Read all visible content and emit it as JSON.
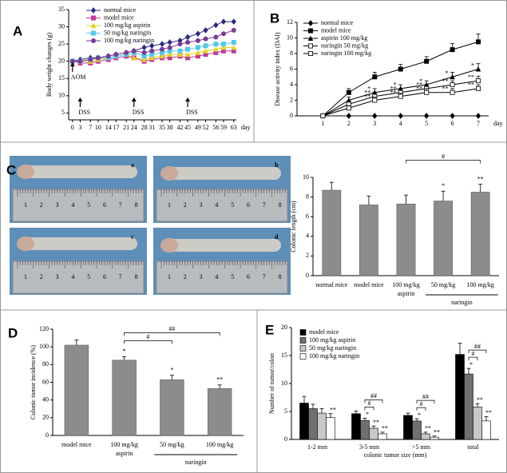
{
  "chart_data": [
    {
      "panel": "A",
      "type": "line",
      "ylabel": "Body weight changes (g)",
      "xlabel": "day",
      "x": [
        0,
        3,
        7,
        10,
        14,
        17,
        21,
        24,
        28,
        31,
        35,
        38,
        42,
        45,
        49,
        52,
        56,
        59,
        63
      ],
      "xlim": [
        -1.5,
        64
      ],
      "xticks": [
        0,
        3,
        7,
        10,
        14,
        17,
        21,
        24,
        28,
        31,
        35,
        38,
        42,
        45,
        49,
        52,
        56,
        59,
        63
      ],
      "ylim": [
        3,
        35
      ],
      "yticks": [
        5,
        10,
        15,
        20,
        25,
        30,
        35
      ],
      "series": [
        {
          "name": "normal mice",
          "color": "#2b2b80",
          "marker": "diamond",
          "values": [
            20,
            20.5,
            21,
            21,
            21.5,
            22,
            22.5,
            23,
            24,
            24.5,
            25,
            25.5,
            26,
            27,
            28,
            29,
            30.5,
            31.5,
            31.5
          ]
        },
        {
          "name": "model mice",
          "color": "#c0399a",
          "marker": "square",
          "values": [
            20,
            19.5,
            19.5,
            20,
            20.5,
            21,
            21.5,
            21,
            20,
            20.5,
            21,
            21,
            21.5,
            21,
            21.5,
            22,
            22.5,
            23,
            23
          ]
        },
        {
          "name": "100 mg/kg aspirin",
          "color": "#e6d21c",
          "marker": "triangle",
          "values": [
            20,
            20,
            20,
            20.5,
            21,
            21.5,
            22,
            21,
            20.5,
            21,
            21.5,
            22,
            22,
            22,
            22.5,
            23,
            23.5,
            24,
            24
          ]
        },
        {
          "name": "50 mg/kg naringin",
          "color": "#55c8e8",
          "marker": "square",
          "values": [
            20,
            20,
            20.5,
            21,
            21,
            21.5,
            22,
            22.5,
            21.5,
            22,
            22.5,
            23,
            23,
            23.5,
            24,
            24.5,
            25,
            25,
            25.5
          ]
        },
        {
          "name": "100 mg/kg naringin",
          "color": "#7b3a94",
          "marker": "circle",
          "values": [
            20,
            20,
            20.5,
            21,
            21.5,
            22,
            22.5,
            23,
            22.5,
            23,
            23.5,
            24,
            25,
            25.5,
            26,
            26.5,
            27,
            28,
            29
          ]
        }
      ],
      "annotations": [
        {
          "text": "AOM",
          "x": 0
        },
        {
          "text": "DSS",
          "x": 3
        },
        {
          "text": "DSS",
          "x": 24
        },
        {
          "text": "DSS",
          "x": 45
        }
      ]
    },
    {
      "panel": "B",
      "type": "line",
      "ylabel": "Disease activity index (DAI)",
      "xlabel": "day",
      "x": [
        1,
        2,
        3,
        4,
        5,
        6,
        7
      ],
      "xlim": [
        0,
        7.4
      ],
      "xticks": [
        1,
        2,
        3,
        4,
        5,
        6,
        7
      ],
      "ylim": [
        0,
        12
      ],
      "yticks": [
        0,
        2,
        4,
        6,
        8,
        10,
        12
      ],
      "series": [
        {
          "name": "normal mice",
          "color": "#000000",
          "marker": "diamond",
          "values": [
            0,
            0,
            0,
            0,
            0,
            0,
            0
          ],
          "errors": [
            0,
            0,
            0,
            0,
            0,
            0,
            0
          ]
        },
        {
          "name": "model mice",
          "color": "#000000",
          "marker": "square",
          "values": [
            0,
            3,
            5,
            6,
            7,
            8.5,
            9.5
          ],
          "errors": [
            0,
            0.5,
            0.6,
            0.6,
            0.6,
            0.8,
            1.0
          ]
        },
        {
          "name": "aspirin 100 mg/kg",
          "color": "#000000",
          "marker": "triangle",
          "values": [
            0,
            2,
            3,
            3.5,
            4,
            5,
            6
          ],
          "errors": [
            0,
            0.4,
            0.5,
            0.5,
            0.5,
            0.6,
            0.7
          ],
          "significance": [
            null,
            null,
            "*",
            "*",
            "*",
            "*",
            "*"
          ]
        },
        {
          "name": "naringin 50 mg/kg",
          "color": "#000000",
          "marker": "open-square",
          "values": [
            0,
            1.5,
            2.5,
            3,
            3.5,
            4,
            4.5
          ],
          "errors": [
            0,
            0.4,
            0.5,
            0.5,
            0.5,
            0.5,
            0.6
          ],
          "significance": [
            null,
            null,
            "**",
            "**",
            "**",
            "**",
            "**"
          ]
        },
        {
          "name": "naringin 100 mg/kg",
          "color": "#000000",
          "marker": "open-square",
          "values": [
            0,
            1,
            2,
            2.5,
            3,
            3,
            3.5
          ],
          "errors": [
            0,
            0.3,
            0.4,
            0.4,
            0.5,
            0.5,
            0.5
          ],
          "significance": [
            null,
            null,
            "**",
            "**",
            "**",
            "**",
            "**"
          ]
        }
      ]
    },
    {
      "panel": "C",
      "type": "image",
      "labels": [
        "a",
        "b",
        "c",
        "d"
      ],
      "ruler_ticks": [
        1,
        2,
        3,
        4,
        5,
        6,
        7,
        8
      ]
    },
    {
      "type": "bar",
      "ylabel": "Colonic length (cm)",
      "categories": [
        "normal mice",
        "model mice",
        "100 mg/kg",
        "50 mg/kg",
        "100 mg/kg"
      ],
      "groups": [
        {
          "label": "aspirin",
          "from": 2,
          "to": 2
        },
        {
          "label": "naringin",
          "from": 3,
          "to": 4
        }
      ],
      "values": [
        8.7,
        7.2,
        7.3,
        7.6,
        8.5
      ],
      "errors": [
        0.8,
        0.9,
        0.9,
        1.0,
        0.8
      ],
      "significance": [
        null,
        null,
        null,
        "*",
        "**"
      ],
      "brackets": [
        {
          "from": 2,
          "to": 4,
          "text": "#"
        }
      ],
      "color": "#8c8c8c",
      "ylim": [
        0,
        10
      ],
      "yticks": [
        0,
        2,
        4,
        6,
        8,
        10
      ]
    },
    {
      "panel": "D",
      "type": "bar",
      "ylabel": "Colonic tumor incidence (%)",
      "categories": [
        "model mice",
        "100 mg/kg",
        "50 mg/kg",
        "100 mg/kg"
      ],
      "groups": [
        {
          "label": "aspirin",
          "from": 1,
          "to": 1
        },
        {
          "label": "naringin",
          "from": 2,
          "to": 3
        }
      ],
      "values": [
        102,
        85,
        63,
        53
      ],
      "errors": [
        6,
        4,
        5,
        4
      ],
      "significance": [
        null,
        "*",
        "*",
        "**"
      ],
      "brackets": [
        {
          "from": 1,
          "to": 2,
          "text": "#"
        },
        {
          "from": 1,
          "to": 3,
          "text": "##"
        }
      ],
      "color": "#8c8c8c",
      "ylim": [
        0,
        120
      ],
      "yticks": [
        0,
        20,
        40,
        60,
        80,
        100,
        120
      ]
    },
    {
      "panel": "E",
      "type": "grouped_bar",
      "ylabel": "Number of tumor/colon",
      "xlabel": "colonic tumor size (mm)",
      "categories": [
        "1-2 mm",
        "3-5 mm",
        ">5 mm",
        "total"
      ],
      "series": [
        {
          "name": "model mice",
          "color": "#000000",
          "values": [
            6.5,
            4.6,
            4.3,
            15.2
          ],
          "errors": [
            1.2,
            0.5,
            0.4,
            2.0
          ]
        },
        {
          "name": "100 mg/kg aspirin",
          "color": "#707070",
          "values": [
            5.5,
            3.4,
            3.3,
            11.7
          ],
          "errors": [
            0.8,
            0.4,
            0.4,
            1.0
          ],
          "significance": [
            null,
            "*",
            "*",
            "*"
          ]
        },
        {
          "name": "50 mg/kg naringin",
          "color": "#c8c8c8",
          "values": [
            4.7,
            2,
            1,
            5.8
          ],
          "errors": [
            0.8,
            0.4,
            0.3,
            0.6
          ],
          "significance": [
            null,
            "**",
            "**",
            "**"
          ]
        },
        {
          "name": "100 mg/kg naringin",
          "color": "#ffffff",
          "values": [
            3.9,
            1,
            0.4,
            3.3
          ],
          "errors": [
            0.7,
            0.3,
            0.2,
            0.8
          ],
          "significance": [
            "**",
            "**",
            "**",
            "**"
          ]
        }
      ],
      "brackets": [
        {
          "category": 1,
          "from": 1,
          "to": 2,
          "text": "#"
        },
        {
          "category": 1,
          "from": 1,
          "to": 3,
          "text": "##"
        },
        {
          "category": 2,
          "from": 1,
          "to": 2,
          "text": "#"
        },
        {
          "category": 2,
          "from": 1,
          "to": 3,
          "text": "##"
        },
        {
          "category": 3,
          "from": 1,
          "to": 2,
          "text": "#"
        },
        {
          "category": 3,
          "from": 1,
          "to": 3,
          "text": "##"
        }
      ],
      "ylim": [
        0,
        20
      ],
      "yticks": [
        0,
        5,
        10,
        15,
        20
      ]
    }
  ]
}
